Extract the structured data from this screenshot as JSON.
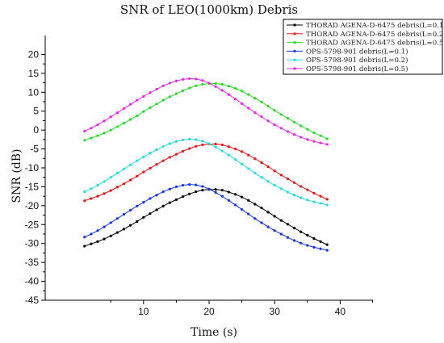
{
  "chart_data": {
    "type": "line",
    "title": "SNR of LEO(1000km) Debris",
    "xlabel": "Time (s)",
    "ylabel": "SNR (dB)",
    "xlim": [
      -5,
      45
    ],
    "ylim": [
      -45,
      25
    ],
    "x_ticks": [
      "10",
      "20",
      "30",
      "40"
    ],
    "y_ticks": [
      "-45",
      "-40",
      "-35",
      "-30",
      "-25",
      "-20",
      "-15",
      "-10",
      "-5",
      "0",
      "5",
      "10",
      "15",
      "20"
    ],
    "grid": false,
    "legend_position": "top-right",
    "x": [
      1,
      2,
      3,
      4,
      5,
      6,
      7,
      8,
      9,
      10,
      11,
      12,
      13,
      14,
      15,
      16,
      17,
      18,
      19,
      20,
      21,
      22,
      23,
      24,
      25,
      26,
      27,
      28,
      29,
      30,
      31,
      32,
      33,
      34,
      35,
      36,
      37,
      38
    ],
    "series": [
      {
        "name": "THORAD AGENA-D-6475 debris(L=0.1)",
        "color": "#000000",
        "values": [
          -30.7,
          -30.1,
          -29.5,
          -28.8,
          -28.0,
          -27.1,
          -26.2,
          -25.2,
          -24.2,
          -23.1,
          -22.1,
          -21.1,
          -20.1,
          -19.2,
          -18.4,
          -17.6,
          -16.9,
          -16.3,
          -15.9,
          -15.7,
          -15.7,
          -15.9,
          -16.4,
          -17.0,
          -17.7,
          -18.6,
          -19.6,
          -20.6,
          -21.7,
          -22.8,
          -23.9,
          -24.9,
          -25.9,
          -26.9,
          -27.8,
          -28.7,
          -29.5,
          -30.3
        ]
      },
      {
        "name": "THORAD AGENA-D-6475 debris(L=0.2)",
        "color": "#ee1111",
        "values": [
          -18.7,
          -18.1,
          -17.5,
          -16.8,
          -16.0,
          -15.1,
          -14.2,
          -13.2,
          -12.2,
          -11.1,
          -10.1,
          -9.1,
          -8.1,
          -7.2,
          -6.4,
          -5.6,
          -4.9,
          -4.3,
          -3.9,
          -3.7,
          -3.7,
          -3.9,
          -4.4,
          -5.0,
          -5.7,
          -6.6,
          -7.6,
          -8.6,
          -9.7,
          -10.8,
          -11.9,
          -12.9,
          -13.9,
          -14.9,
          -15.8,
          -16.7,
          -17.5,
          -18.3
        ]
      },
      {
        "name": "THORAD AGENA-D-6475 debris(L=0.5)",
        "color": "#22dd22",
        "values": [
          -2.7,
          -2.1,
          -1.5,
          -0.8,
          0.0,
          0.9,
          1.8,
          2.8,
          3.8,
          4.9,
          5.9,
          6.9,
          7.9,
          8.8,
          9.6,
          10.4,
          11.1,
          11.7,
          12.1,
          12.3,
          12.3,
          12.1,
          11.6,
          11.0,
          10.3,
          9.4,
          8.4,
          7.4,
          6.3,
          5.2,
          4.1,
          3.1,
          2.1,
          1.1,
          0.2,
          -0.7,
          -1.5,
          -2.3
        ]
      },
      {
        "name": "OPS-5798-901 debris(L=0.1)",
        "color": "#1133ee",
        "values": [
          -28.3,
          -27.5,
          -26.6,
          -25.6,
          -24.5,
          -23.4,
          -22.3,
          -21.2,
          -20.1,
          -19.1,
          -18.1,
          -17.2,
          -16.3,
          -15.6,
          -15.0,
          -14.6,
          -14.4,
          -14.5,
          -14.9,
          -15.6,
          -16.5,
          -17.5,
          -18.6,
          -19.8,
          -21.0,
          -22.2,
          -23.4,
          -24.5,
          -25.6,
          -26.6,
          -27.5,
          -28.4,
          -29.2,
          -29.9,
          -30.5,
          -31.0,
          -31.4,
          -31.8
        ]
      },
      {
        "name": "OPS-5798-901 debris(L=0.2)",
        "color": "#22dddd",
        "values": [
          -16.3,
          -15.5,
          -14.6,
          -13.6,
          -12.5,
          -11.4,
          -10.3,
          -9.2,
          -8.1,
          -7.1,
          -6.1,
          -5.2,
          -4.3,
          -3.6,
          -3.0,
          -2.6,
          -2.4,
          -2.5,
          -2.9,
          -3.6,
          -4.5,
          -5.5,
          -6.6,
          -7.8,
          -9.0,
          -10.2,
          -11.4,
          -12.5,
          -13.6,
          -14.6,
          -15.5,
          -16.4,
          -17.2,
          -17.9,
          -18.5,
          -19.0,
          -19.4,
          -19.8
        ]
      },
      {
        "name": "OPS-5798-901 debris(L=0.5)",
        "color": "#ee22ee",
        "values": [
          -0.3,
          0.5,
          1.4,
          2.4,
          3.5,
          4.6,
          5.7,
          6.8,
          7.9,
          8.9,
          9.9,
          10.8,
          11.7,
          12.4,
          13.0,
          13.4,
          13.6,
          13.5,
          13.1,
          12.4,
          11.5,
          10.5,
          9.4,
          8.2,
          7.0,
          5.8,
          4.6,
          3.5,
          2.4,
          1.4,
          0.5,
          -0.4,
          -1.2,
          -1.9,
          -2.5,
          -3.0,
          -3.4,
          -3.8
        ]
      }
    ]
  }
}
